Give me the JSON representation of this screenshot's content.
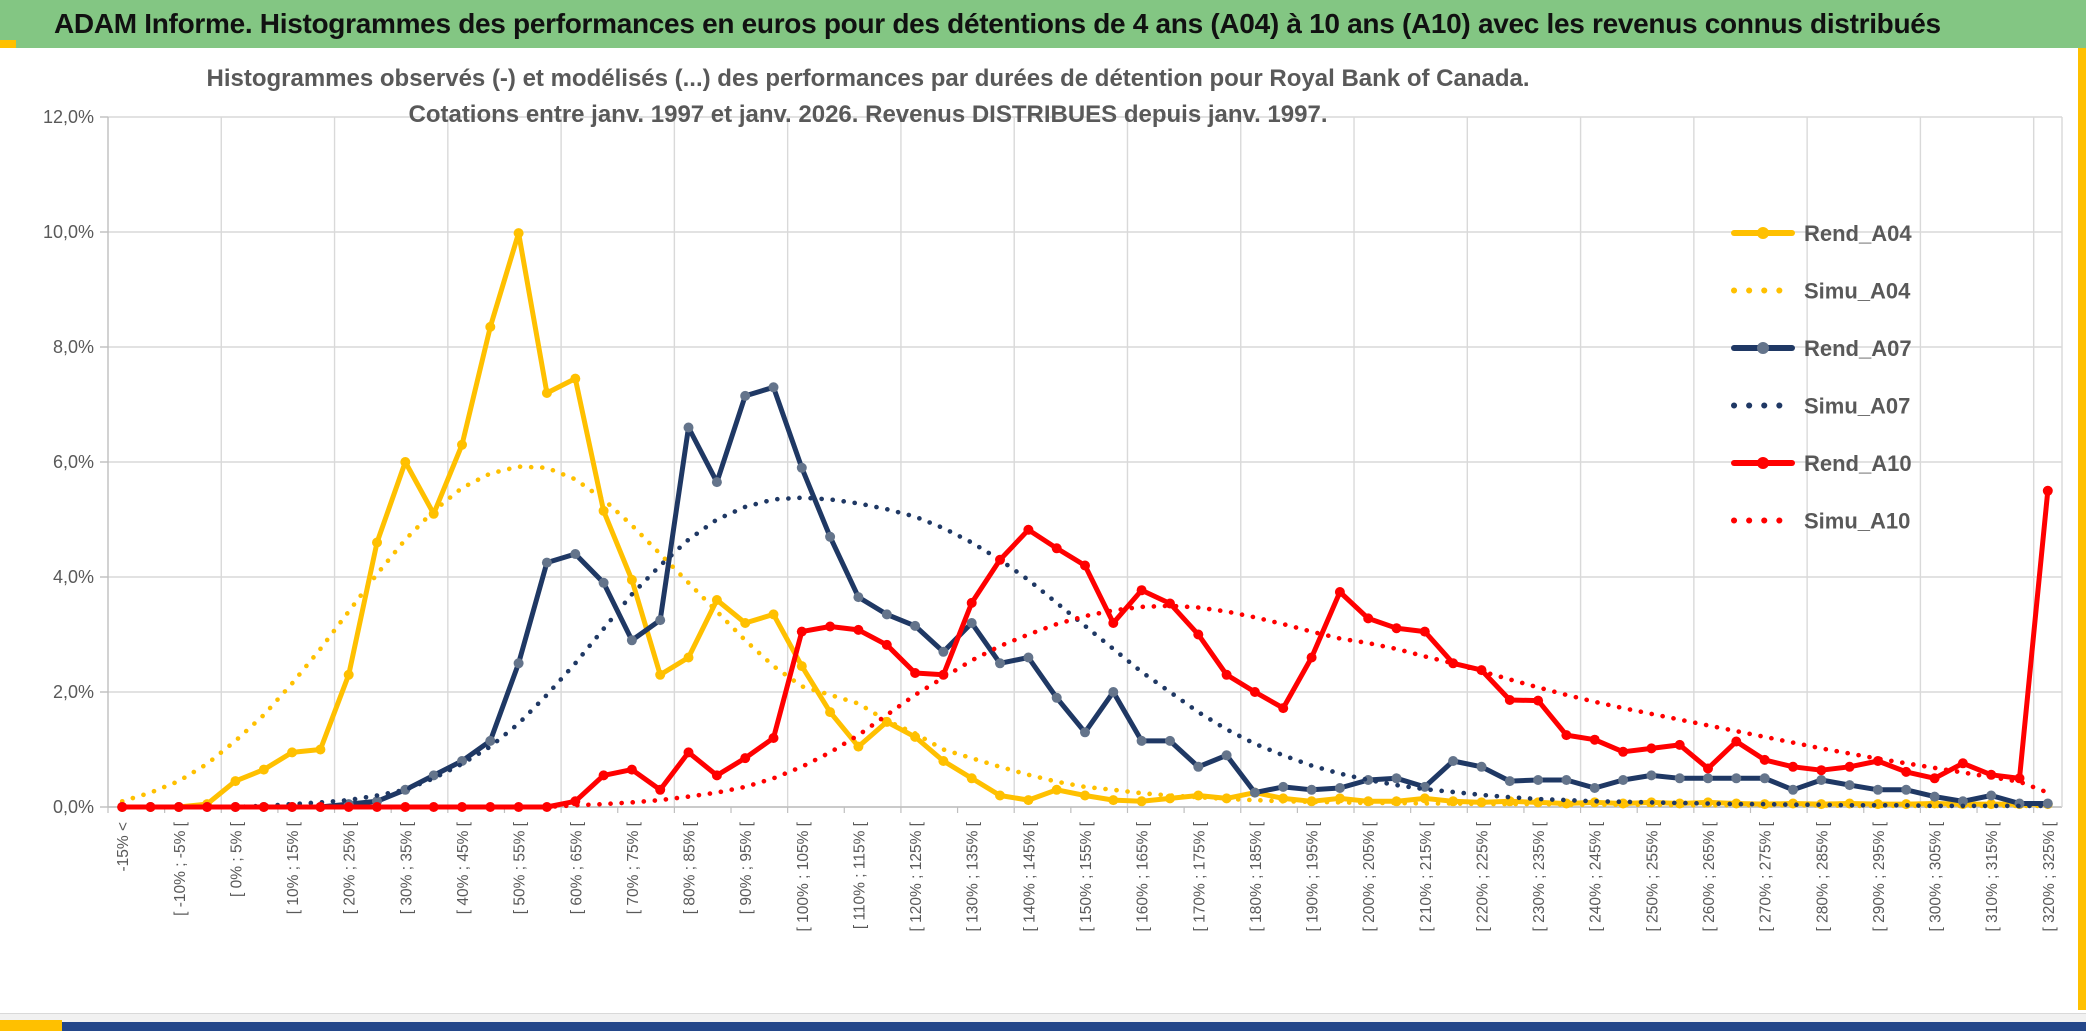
{
  "window": {
    "header_title": "ADAM Informe. Histogrammes des performances en euros pour des détentions de 4 ans (A04) à 10 ans (A10) avec les revenus connus distribués",
    "colors": {
      "header_bg": "#83C683",
      "frame_yellow": "#FFC000",
      "bottom_bar_blue": "#24478A",
      "gold": "#FFC000",
      "navy": "#1F3864",
      "navy_marker": "#64748B",
      "red": "#FF0000",
      "text_gray": "#595959",
      "gridline": "#D9D9D9",
      "axis_line": "#BFBFBF"
    }
  },
  "chart_data": {
    "type": "line",
    "title_line1": "Histogrammes observés (-) et modélisés (...) des performances par durées de détention pour Royal Bank of Canada.",
    "title_line2": "Cotations entre janv. 1997 et janv. 2026. Revenus DISTRIBUES depuis janv. 1997.",
    "ylabel": "",
    "xlabel": "",
    "ylim_percent": [
      0,
      12
    ],
    "y_tick_step_percent": 2,
    "y_tick_labels": [
      "0,0%",
      "2,0%",
      "4,0%",
      "6,0%",
      "8,0%",
      "10,0%",
      "12,0%"
    ],
    "grid": true,
    "legend_position": "inside-right",
    "x_axis_labels_shown": [
      "-15% <",
      "[ -10% ; -5% [",
      "[ 0% ; 5% [",
      "[ 10% ; 15% [",
      "[ 20% ; 25% [",
      "[ 30% ; 35% [",
      "[ 40% ; 45% [",
      "[ 50% ; 55% [",
      "[ 60% ; 65% [",
      "[ 70% ; 75% [",
      "[ 80% ; 85% [",
      "[ 90% ; 95% [",
      "[ 100% ; 105% [",
      "[ 110% ; 115% [",
      "[ 120% ; 125% [",
      "[ 130% ; 135% [",
      "[ 140% ; 145% [",
      "[ 150% ; 155% [",
      "[ 160% ; 165% [",
      "[ 170% ; 175% [",
      "[ 180% ; 185% [",
      "[ 190% ; 195% [",
      "[ 200% ; 205% [",
      "[ 210% ; 215% [",
      "[ 220% ; 225% [",
      "[ 230% ; 235% [",
      "[ 240% ; 245% [",
      "[ 250% ; 255% [",
      "[ 260% ; 265% [",
      "[ 270% ; 275% [",
      "[ 280% ; 285% [",
      "[ 290% ; 295% [",
      "[ 300% ; 305% [",
      "[ 310% ; 315% [",
      "[ 320% ; 325% ["
    ],
    "categories": [
      "-15% <",
      "[-15% ; -10%[",
      "[-10% ; -5%[",
      "[-5% ; 0%[",
      "[0% ; 5%[",
      "[5% ; 10%[",
      "[10% ; 15%[",
      "[15% ; 20%[",
      "[20% ; 25%[",
      "[25% ; 30%[",
      "[30% ; 35%[",
      "[35% ; 40%[",
      "[40% ; 45%[",
      "[45% ; 50%[",
      "[50% ; 55%[",
      "[55% ; 60%[",
      "[60% ; 65%[",
      "[65% ; 70%[",
      "[70% ; 75%[",
      "[75% ; 80%[",
      "[80% ; 85%[",
      "[85% ; 90%[",
      "[90% ; 95%[",
      "[95% ; 100%[",
      "[100% ; 105%[",
      "[105% ; 110%[",
      "[110% ; 115%[",
      "[115% ; 120%[",
      "[120% ; 125%[",
      "[125% ; 130%[",
      "[130% ; 135%[",
      "[135% ; 140%[",
      "[140% ; 145%[",
      "[145% ; 150%[",
      "[150% ; 155%[",
      "[155% ; 160%[",
      "[160% ; 165%[",
      "[165% ; 170%[",
      "[170% ; 175%[",
      "[175% ; 180%[",
      "[180% ; 185%[",
      "[185% ; 190%[",
      "[190% ; 195%[",
      "[195% ; 200%[",
      "[200% ; 205%[",
      "[205% ; 210%[",
      "[210% ; 215%[",
      "[215% ; 220%[",
      "[220% ; 225%[",
      "[225% ; 230%[",
      "[230% ; 235%[",
      "[235% ; 240%[",
      "[240% ; 245%[",
      "[245% ; 250%[",
      "[250% ; 255%[",
      "[255% ; 260%[",
      "[260% ; 265%[",
      "[265% ; 270%[",
      "[270% ; 275%[",
      "[275% ; 280%[",
      "[280% ; 285%[",
      "[285% ; 290%[",
      "[290% ; 295%[",
      "[295% ; 300%[",
      "[300% ; 305%[",
      "[305% ; 310%[",
      "[310% ; 315%[",
      "[315% ; 320%[",
      "[320% ; 325%["
    ],
    "series": [
      {
        "name": "Rend_A04",
        "style": "solid",
        "color": "#FFC000",
        "marker_color": "#FFC000",
        "values_percent": [
          0,
          0,
          0,
          0.05,
          0.45,
          0.65,
          0.95,
          1.0,
          2.3,
          4.6,
          6.0,
          5.1,
          6.3,
          8.35,
          9.98,
          7.2,
          7.45,
          5.15,
          3.95,
          2.3,
          2.6,
          3.6,
          3.2,
          3.35,
          2.45,
          1.65,
          1.05,
          1.48,
          1.22,
          0.8,
          0.5,
          0.2,
          0.12,
          0.3,
          0.2,
          0.12,
          0.1,
          0.15,
          0.2,
          0.15,
          0.25,
          0.15,
          0.1,
          0.15,
          0.1,
          0.1,
          0.15,
          0.1,
          0.08,
          0.1,
          0.08,
          0.06,
          0.08,
          0.06,
          0.08,
          0.06,
          0.08,
          0.06,
          0.05,
          0.06,
          0.05,
          0.06,
          0.05,
          0.05,
          0.06,
          0.05,
          0.05,
          0.05,
          0.05
        ]
      },
      {
        "name": "Simu_A04",
        "style": "dotted",
        "color": "#FFC000",
        "values_percent": [
          0.1,
          0.25,
          0.45,
          0.75,
          1.15,
          1.6,
          2.15,
          2.75,
          3.4,
          4.05,
          4.65,
          5.15,
          5.55,
          5.8,
          5.92,
          5.9,
          5.7,
          5.35,
          4.9,
          4.4,
          3.9,
          3.4,
          2.9,
          2.45,
          2.1,
          1.95,
          1.8,
          1.5,
          1.28,
          1.0,
          0.85,
          0.7,
          0.56,
          0.44,
          0.35,
          0.3,
          0.24,
          0.2,
          0.17,
          0.14,
          0.12,
          0.1,
          0.09,
          0.08,
          0.07,
          0.07,
          0.06,
          0.06,
          0.05,
          0.05,
          0.05,
          0.04,
          0.04,
          0.04,
          0.04,
          0.03,
          0.03,
          0.03,
          0.03,
          0.03,
          0.03,
          0.02,
          0.02,
          0.02,
          0.02,
          0.02,
          0.02,
          0.02,
          0.02
        ]
      },
      {
        "name": "Rend_A07",
        "style": "solid",
        "color": "#1F3864",
        "marker_color": "#64748B",
        "values_percent": [
          0,
          0,
          0,
          0,
          0,
          0,
          0,
          0,
          0.05,
          0.1,
          0.3,
          0.55,
          0.8,
          1.15,
          2.5,
          4.25,
          4.4,
          3.9,
          2.9,
          3.25,
          6.6,
          5.65,
          7.15,
          7.3,
          5.9,
          4.7,
          3.65,
          3.35,
          3.15,
          2.7,
          3.2,
          2.5,
          2.6,
          1.9,
          1.3,
          2.0,
          1.15,
          1.15,
          0.7,
          0.9,
          0.25,
          0.35,
          0.3,
          0.33,
          0.47,
          0.5,
          0.35,
          0.8,
          0.7,
          0.45,
          0.47,
          0.47,
          0.33,
          0.47,
          0.55,
          0.5,
          0.5,
          0.5,
          0.5,
          0.3,
          0.47,
          0.38,
          0.3,
          0.3,
          0.18,
          0.1,
          0.2,
          0.06,
          0.06
        ]
      },
      {
        "name": "Simu_A07",
        "style": "dotted",
        "color": "#1F3864",
        "values_percent": [
          0,
          0,
          0,
          0,
          0,
          0.02,
          0.05,
          0.08,
          0.12,
          0.2,
          0.3,
          0.5,
          0.75,
          1.05,
          1.45,
          1.95,
          2.5,
          3.1,
          3.7,
          4.2,
          4.65,
          5.0,
          5.22,
          5.35,
          5.38,
          5.35,
          5.28,
          5.18,
          5.05,
          4.85,
          4.6,
          4.3,
          3.95,
          3.55,
          3.15,
          2.75,
          2.35,
          2.0,
          1.65,
          1.35,
          1.1,
          0.9,
          0.72,
          0.58,
          0.47,
          0.38,
          0.31,
          0.26,
          0.21,
          0.17,
          0.14,
          0.12,
          0.1,
          0.09,
          0.08,
          0.07,
          0.06,
          0.05,
          0.05,
          0.04,
          0.04,
          0.03,
          0.03,
          0.03,
          0.02,
          0.02,
          0.02,
          0.02,
          0.02
        ]
      },
      {
        "name": "Rend_A10",
        "style": "solid",
        "color": "#FF0000",
        "marker_color": "#FF0000",
        "values_percent": [
          0,
          0,
          0,
          0,
          0,
          0,
          0,
          0,
          0,
          0,
          0,
          0,
          0,
          0,
          0,
          0,
          0.1,
          0.55,
          0.65,
          0.3,
          0.95,
          0.55,
          0.85,
          1.2,
          3.05,
          3.14,
          3.08,
          2.82,
          2.33,
          2.3,
          3.55,
          4.3,
          4.82,
          4.5,
          4.2,
          3.2,
          3.77,
          3.54,
          3.0,
          2.3,
          2.0,
          1.72,
          2.6,
          3.74,
          3.28,
          3.11,
          3.05,
          2.5,
          2.38,
          1.86,
          1.85,
          1.25,
          1.17,
          0.96,
          1.02,
          1.08,
          0.67,
          1.14,
          0.82,
          0.7,
          0.64,
          0.7,
          0.8,
          0.61,
          0.5,
          0.76,
          0.56,
          0.5,
          5.5
        ]
      },
      {
        "name": "Simu_A10",
        "style": "dotted",
        "color": "#FF0000",
        "values_percent": [
          0,
          0,
          0,
          0,
          0,
          0,
          0,
          0,
          0,
          0,
          0,
          0,
          0,
          0,
          0,
          0,
          0.03,
          0.05,
          0.08,
          0.12,
          0.18,
          0.25,
          0.35,
          0.5,
          0.7,
          0.95,
          1.25,
          1.6,
          1.95,
          2.25,
          2.55,
          2.8,
          3.0,
          3.18,
          3.32,
          3.42,
          3.48,
          3.5,
          3.47,
          3.4,
          3.3,
          3.18,
          3.05,
          2.93,
          2.85,
          2.75,
          2.62,
          2.5,
          2.36,
          2.22,
          2.08,
          1.95,
          1.83,
          1.72,
          1.62,
          1.52,
          1.42,
          1.32,
          1.22,
          1.12,
          1.02,
          0.93,
          0.84,
          0.76,
          0.68,
          0.6,
          0.52,
          0.44,
          0.25
        ]
      }
    ],
    "legend": [
      {
        "label": "Rend_A04",
        "color": "#FFC000",
        "style": "solid"
      },
      {
        "label": "Simu_A04",
        "color": "#FFC000",
        "style": "dotted"
      },
      {
        "label": "Rend_A07",
        "color": "#1F3864",
        "style": "solid",
        "marker_color": "#64748B"
      },
      {
        "label": "Simu_A07",
        "color": "#1F3864",
        "style": "dotted"
      },
      {
        "label": "Rend_A10",
        "color": "#FF0000",
        "style": "solid"
      },
      {
        "label": "Simu_A10",
        "color": "#FF0000",
        "style": "dotted"
      }
    ]
  }
}
